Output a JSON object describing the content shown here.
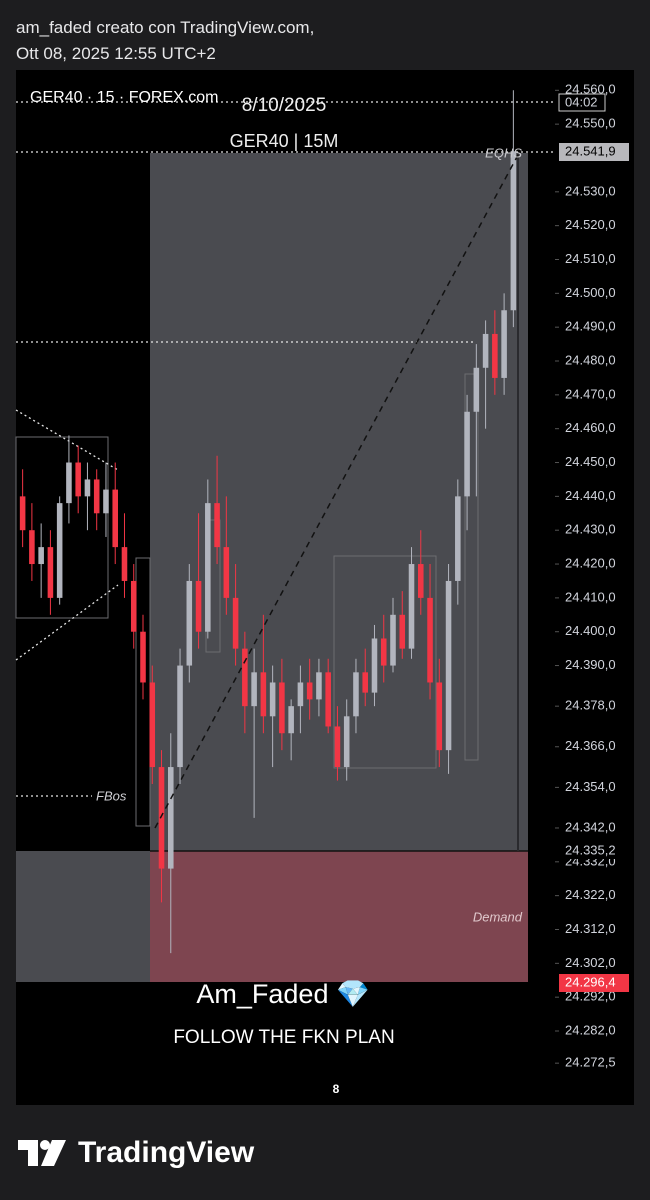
{
  "header": {
    "line1": "am_faded creato con TradingView.com,",
    "line2": "Ott 08, 2025 12:55 UTC+2"
  },
  "footer": {
    "brand": "TradingView"
  },
  "chart_data": {
    "type": "candlestick",
    "title": "GER40 · 15 · FOREX.com",
    "annotations": {
      "date": "8/10/2025",
      "symbol": "GER40 | 15M",
      "eqhs": "EQHS",
      "fbos": "FBos",
      "demand": "Demand",
      "author": "Am_Faded 💎",
      "motto": "FOLLOW THE FKN PLAN"
    },
    "x_label": "8",
    "price_labels": {
      "time": "04:02",
      "eqhs_level": "24.541,9",
      "demand_top": "24.335,2",
      "last": "24.296,4"
    },
    "up_color": "#b2b5be",
    "down_color": "#f23645",
    "ylim": [
      24269,
      24566
    ],
    "yticks": [
      {
        "value": 24560,
        "label": "24.560,0"
      },
      {
        "value": 24550,
        "label": "24.550,0"
      },
      {
        "value": 24530,
        "label": "24.530,0"
      },
      {
        "value": 24520,
        "label": "24.520,0"
      },
      {
        "value": 24510,
        "label": "24.510,0"
      },
      {
        "value": 24500,
        "label": "24.500,0"
      },
      {
        "value": 24490,
        "label": "24.490,0"
      },
      {
        "value": 24480,
        "label": "24.480,0"
      },
      {
        "value": 24470,
        "label": "24.470,0"
      },
      {
        "value": 24460,
        "label": "24.460,0"
      },
      {
        "value": 24450,
        "label": "24.450,0"
      },
      {
        "value": 24440,
        "label": "24.440,0"
      },
      {
        "value": 24430,
        "label": "24.430,0"
      },
      {
        "value": 24420,
        "label": "24.420,0"
      },
      {
        "value": 24410,
        "label": "24.410,0"
      },
      {
        "value": 24400,
        "label": "24.400,0"
      },
      {
        "value": 24390,
        "label": "24.390,0"
      },
      {
        "value": 24378,
        "label": "24.378,0"
      },
      {
        "value": 24366,
        "label": "24.366,0"
      },
      {
        "value": 24354,
        "label": "24.354,0"
      },
      {
        "value": 24342,
        "label": "24.342,0"
      },
      {
        "value": 24332,
        "label": "24.332,0"
      },
      {
        "value": 24322,
        "label": "24.322,0"
      },
      {
        "value": 24312,
        "label": "24.312,0"
      },
      {
        "value": 24302,
        "label": "24.302,0"
      },
      {
        "value": 24292,
        "label": "24.292,0"
      },
      {
        "value": 24282,
        "label": "24.282,0"
      },
      {
        "value": 24272.5,
        "label": "24.272,5"
      }
    ],
    "open": [
      24440,
      24430,
      24420,
      24425,
      24410,
      24438,
      24450,
      24440,
      24445,
      24435,
      24442,
      24425,
      24415,
      24400,
      24385,
      24360,
      24330,
      24360,
      24390,
      24415,
      24400,
      24438,
      24425,
      24410,
      24395,
      24378,
      24388,
      24375,
      24385,
      24370,
      24378,
      24385,
      24380,
      24388,
      24372,
      24360,
      24375,
      24388,
      24382,
      24398,
      24390,
      24405,
      24395,
      24420,
      24410,
      24385,
      24365,
      24415,
      24440,
      24465,
      24478,
      24488,
      24475,
      24495
    ],
    "high": [
      24448,
      24438,
      24432,
      24430,
      24440,
      24458,
      24455,
      24450,
      24448,
      24450,
      24450,
      24435,
      24420,
      24405,
      24390,
      24365,
      24370,
      24395,
      24420,
      24435,
      24445,
      24452,
      24440,
      24420,
      24400,
      24395,
      24405,
      24390,
      24392,
      24380,
      24390,
      24392,
      24392,
      24392,
      24378,
      24380,
      24392,
      24395,
      24402,
      24405,
      24410,
      24412,
      24425,
      24430,
      24420,
      24392,
      24420,
      24445,
      24470,
      24485,
      24492,
      24495,
      24500,
      24560
    ],
    "low": [
      24425,
      24415,
      24410,
      24405,
      24408,
      24432,
      24435,
      24430,
      24430,
      24428,
      24420,
      24410,
      24395,
      24380,
      24355,
      24320,
      24305,
      24355,
      24385,
      24395,
      24398,
      24420,
      24405,
      24390,
      24370,
      24345,
      24370,
      24360,
      24365,
      24362,
      24370,
      24374,
      24375,
      24370,
      24356,
      24356,
      24370,
      24378,
      24378,
      24385,
      24388,
      24392,
      24392,
      24405,
      24380,
      24360,
      24358,
      24408,
      24430,
      24440,
      24460,
      24470,
      24470,
      24490
    ],
    "close": [
      24430,
      24420,
      24425,
      24410,
      24438,
      24450,
      24440,
      24445,
      24435,
      24442,
      24425,
      24415,
      24400,
      24385,
      24360,
      24330,
      24360,
      24390,
      24415,
      24400,
      24438,
      24425,
      24410,
      24395,
      24378,
      24388,
      24375,
      24385,
      24370,
      24378,
      24385,
      24380,
      24388,
      24372,
      24360,
      24375,
      24388,
      24382,
      24398,
      24390,
      24405,
      24395,
      24420,
      24410,
      24385,
      24365,
      24415,
      24440,
      24465,
      24478,
      24488,
      24475,
      24495,
      24542
    ]
  }
}
